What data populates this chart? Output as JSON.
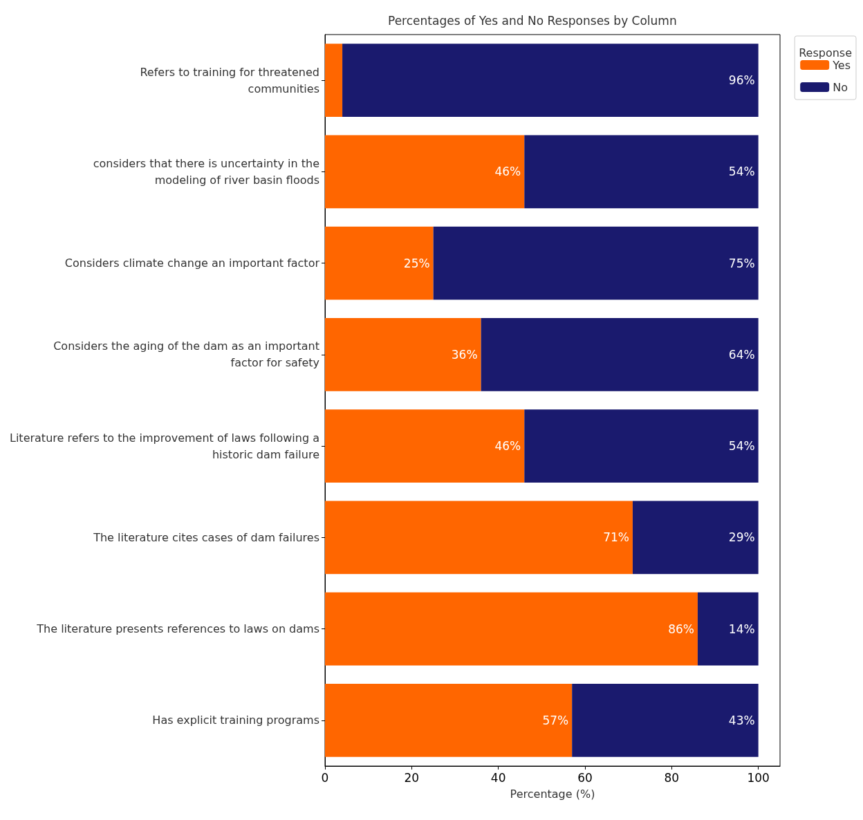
{
  "chart_data": {
    "type": "bar",
    "orientation": "horizontal",
    "stacked": true,
    "title": "Percentages of Yes and No Responses by Column",
    "xlabel": "Percentage (%)",
    "legend_title": "Response",
    "legend": "top right",
    "categories": [
      "Refers to training for threatened\ncommunities",
      "considers that there is uncertainty in the\nmodeling of river basin floods",
      "Considers climate change an important factor",
      "Considers the aging of the dam as an important\nfactor for safety",
      "Literature refers to the improvement of laws following a\nhistoric dam failure",
      "The literature cites cases of dam failures",
      "The literature presents references to laws on dams",
      "Has explicit training programs"
    ],
    "series": [
      {
        "name": "Yes",
        "color": "#ff6600",
        "values": [
          4,
          46,
          25,
          36,
          46,
          71,
          86,
          57
        ],
        "value_labels": [
          null,
          "46%",
          "25%",
          "36%",
          "46%",
          "71%",
          "86%",
          "57%"
        ]
      },
      {
        "name": "No",
        "color": "#1a1a6e",
        "values": [
          96,
          54,
          75,
          64,
          54,
          29,
          14,
          43
        ],
        "value_labels": [
          "96%",
          "54%",
          "75%",
          "64%",
          "54%",
          "29%",
          "14%",
          "43%"
        ]
      }
    ],
    "xlim": [
      0,
      105
    ],
    "xticks": [
      0,
      20,
      40,
      60,
      80,
      100
    ],
    "grid": false
  }
}
